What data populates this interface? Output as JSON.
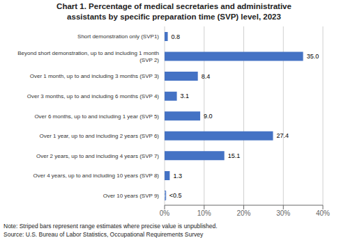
{
  "chart_data": {
    "type": "bar",
    "orientation": "horizontal",
    "title": "Chart 1. Percentage of medical secretaries and administrative\nassistants by specific preparation time (SVP) level, 2023",
    "categories": [
      "Short demonstration only (SVP1)",
      "Beyond short demonstration, up to and including 1 month\n(SVP 2)",
      "Over 1 month, up to and including 3 months (SVP 3)",
      "Over 3 months, up to and including 6 months (SVP 4)",
      "Over 6 months, up to and including 1 year (SVP 5)",
      "Over 1 year, up to and including 2 years (SVP 6)",
      "Over 2 years, up to and including 4 years (SVP 7)",
      "Over 4 years, up to and including 10 years (SVP 8)",
      "Over 10 years (SVP 9)"
    ],
    "values": [
      0.8,
      35.0,
      8.4,
      3.1,
      9.0,
      27.4,
      15.1,
      1.3,
      0.3
    ],
    "value_labels": [
      "0.8",
      "35.0",
      "8.4",
      "3.1",
      "9.0",
      "27.4",
      "15.1",
      "1.3",
      "<0.5"
    ],
    "data_labels": true,
    "color": "#4472c4",
    "xlim": [
      0,
      40
    ],
    "xticks": [
      {
        "value": 0,
        "label": "0%"
      },
      {
        "value": 10,
        "label": "10%"
      },
      {
        "value": 20,
        "label": "20%"
      },
      {
        "value": 30,
        "label": "30%"
      },
      {
        "value": 40,
        "label": "40%"
      }
    ],
    "grid": true,
    "annotations": [
      "Note: Striped bars represent range estimates where precise value is unpublished.",
      "Source: U.S. Bureau of Labor Statistics, Occupational Requirements Survey"
    ]
  }
}
